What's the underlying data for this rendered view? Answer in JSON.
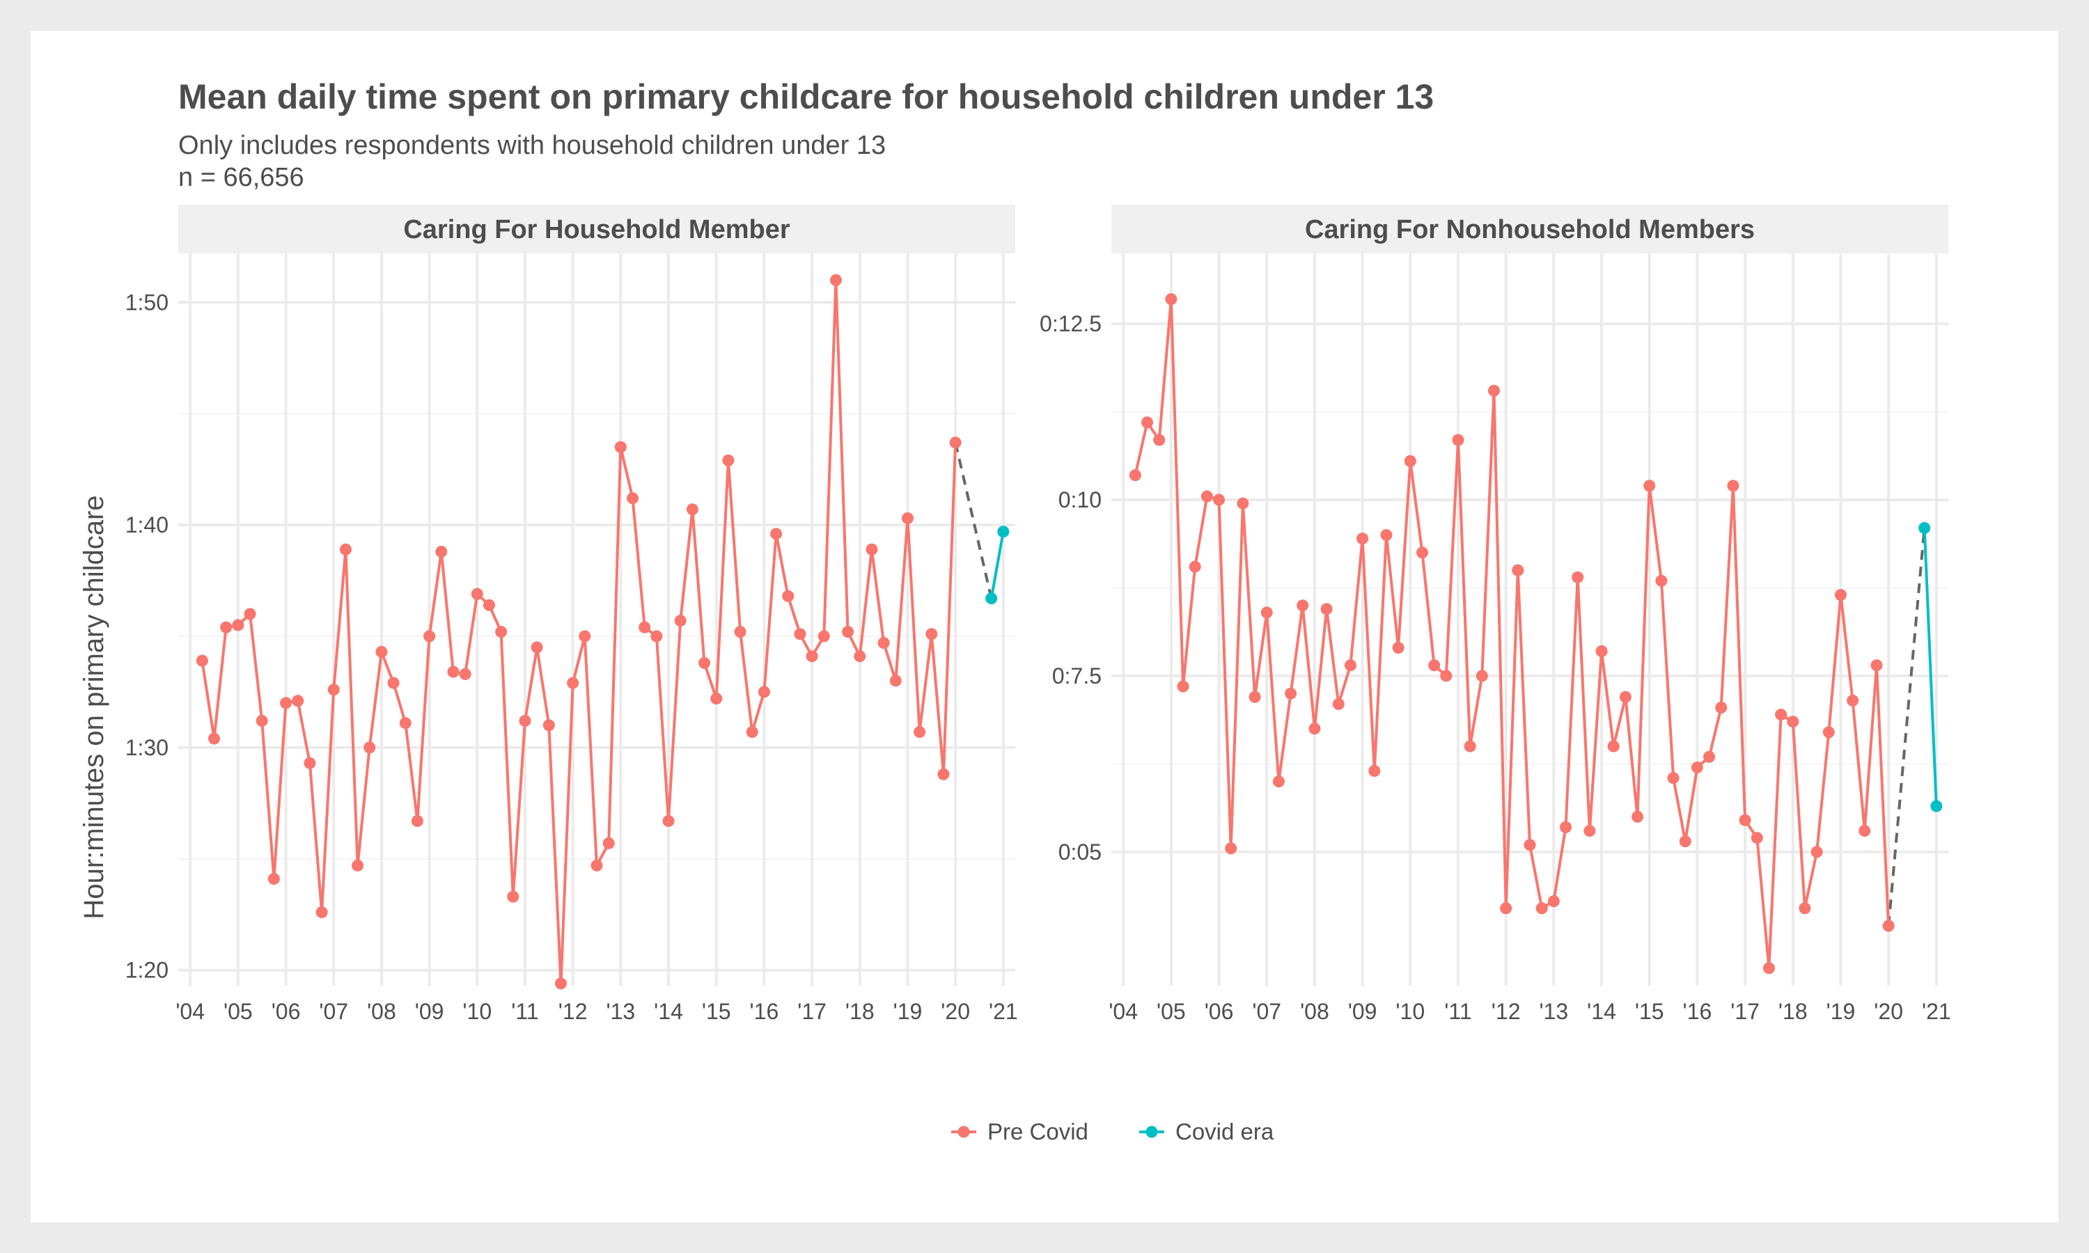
{
  "chart_data": {
    "type": "line",
    "title": "Mean daily time spent on primary childcare for household children under 13",
    "subtitle_lines": [
      "Only includes respondents with household children under 13",
      "n = 66,656"
    ],
    "ylabel": "Hour:minutes on primary childcare",
    "x_tick_labels": [
      "'04",
      "'05",
      "'06",
      "'07",
      "'08",
      "'09",
      "'10",
      "'11",
      "'12",
      "'13",
      "'14",
      "'15",
      "'16",
      "'17",
      "'18",
      "'19",
      "'20",
      "'21"
    ],
    "legend": {
      "position": "bottom",
      "entries": [
        {
          "name": "Pre Covid",
          "color": "#F8766D"
        },
        {
          "name": "Covid era",
          "color": "#00BFC4"
        }
      ]
    },
    "connector_color": "#666666",
    "grid": true,
    "panels": [
      {
        "strip_label": "Caring For Household Member",
        "y_unit": "minutes",
        "ylim": [
          79.3,
          112.2
        ],
        "y_ticks": [
          80,
          90,
          100,
          110
        ],
        "y_tick_labels": [
          "1:20",
          "1:30",
          "1:40",
          "1:50"
        ],
        "xlim": [
          2003.75,
          2021.25
        ],
        "series": [
          {
            "name": "Pre Covid",
            "x": [
              2004.25,
              2004.5,
              2004.75,
              2005.0,
              2005.25,
              2005.5,
              2005.75,
              2006.0,
              2006.25,
              2006.5,
              2006.75,
              2007.0,
              2007.25,
              2007.5,
              2007.75,
              2008.0,
              2008.25,
              2008.5,
              2008.75,
              2009.0,
              2009.25,
              2009.5,
              2009.75,
              2010.0,
              2010.25,
              2010.5,
              2010.75,
              2011.0,
              2011.25,
              2011.5,
              2011.75,
              2012.0,
              2012.25,
              2012.5,
              2012.75,
              2013.0,
              2013.25,
              2013.5,
              2013.75,
              2014.0,
              2014.25,
              2014.5,
              2014.75,
              2015.0,
              2015.25,
              2015.5,
              2015.75,
              2016.0,
              2016.25,
              2016.5,
              2016.75,
              2017.0,
              2017.25,
              2017.5,
              2017.75,
              2018.0,
              2018.25,
              2018.5,
              2018.75,
              2019.0,
              2019.25,
              2019.5,
              2019.75,
              2020.0
            ],
            "y": [
              93.9,
              90.4,
              95.4,
              95.5,
              96.0,
              91.2,
              84.1,
              92.0,
              92.1,
              89.3,
              82.6,
              92.6,
              98.9,
              84.7,
              90.0,
              94.3,
              92.9,
              91.1,
              86.7,
              95.0,
              98.8,
              93.4,
              93.3,
              96.9,
              96.4,
              95.2,
              83.3,
              91.2,
              94.5,
              91.0,
              79.4,
              92.9,
              95.0,
              84.7,
              85.7,
              103.5,
              101.2,
              95.4,
              95.0,
              86.7,
              95.7,
              100.7,
              93.8,
              92.2,
              102.9,
              95.2,
              90.7,
              92.5,
              99.6,
              96.8,
              95.1,
              94.1,
              95.0,
              111.0,
              95.2,
              94.1,
              98.9,
              94.7,
              93.0,
              100.3,
              90.7,
              95.1,
              88.8,
              103.7
            ]
          },
          {
            "name": "Covid era",
            "x": [
              2020.75,
              2021.0
            ],
            "y": [
              96.7,
              99.7
            ]
          }
        ]
      },
      {
        "strip_label": "Caring For Nonhousehold Members",
        "y_unit": "minutes",
        "ylim": [
          3.1,
          13.5
        ],
        "y_ticks": [
          5,
          7.5,
          10,
          12.5
        ],
        "y_tick_labels": [
          "0:05",
          "0:7.5",
          "0:10",
          "0:12.5"
        ],
        "xlim": [
          2003.75,
          2021.25
        ],
        "series": [
          {
            "name": "Pre Covid",
            "x": [
              2004.25,
              2004.5,
              2004.75,
              2005.0,
              2005.25,
              2005.5,
              2005.75,
              2006.0,
              2006.25,
              2006.5,
              2006.75,
              2007.0,
              2007.25,
              2007.5,
              2007.75,
              2008.0,
              2008.25,
              2008.5,
              2008.75,
              2009.0,
              2009.25,
              2009.5,
              2009.75,
              2010.0,
              2010.25,
              2010.5,
              2010.75,
              2011.0,
              2011.25,
              2011.5,
              2011.75,
              2012.0,
              2012.25,
              2012.5,
              2012.75,
              2013.0,
              2013.25,
              2013.5,
              2013.75,
              2014.0,
              2014.25,
              2014.5,
              2014.75,
              2015.0,
              2015.25,
              2015.5,
              2015.75,
              2016.0,
              2016.25,
              2016.5,
              2016.75,
              2017.0,
              2017.25,
              2017.5,
              2017.75,
              2018.0,
              2018.25,
              2018.5,
              2018.75,
              2019.0,
              2019.25,
              2019.5,
              2019.75,
              2020.0
            ],
            "y": [
              10.35,
              11.1,
              10.85,
              12.85,
              7.35,
              9.05,
              10.05,
              10.0,
              5.05,
              9.95,
              7.2,
              8.4,
              6.0,
              7.25,
              8.5,
              6.75,
              8.45,
              7.1,
              7.65,
              9.45,
              6.15,
              9.5,
              7.9,
              10.55,
              9.25,
              7.65,
              7.5,
              10.85,
              6.5,
              7.5,
              11.55,
              4.2,
              9.0,
              5.1,
              4.2,
              4.3,
              5.35,
              8.9,
              5.3,
              7.85,
              6.5,
              7.2,
              5.5,
              10.2,
              8.85,
              6.05,
              5.15,
              6.2,
              6.35,
              7.05,
              10.2,
              5.45,
              5.2,
              3.35,
              6.95,
              6.85,
              4.2,
              5.0,
              6.7,
              8.65,
              7.15,
              5.3,
              7.65,
              3.95
            ]
          },
          {
            "name": "Covid era",
            "x": [
              2020.75,
              2021.0
            ],
            "y": [
              9.6,
              5.65
            ]
          }
        ]
      }
    ]
  }
}
